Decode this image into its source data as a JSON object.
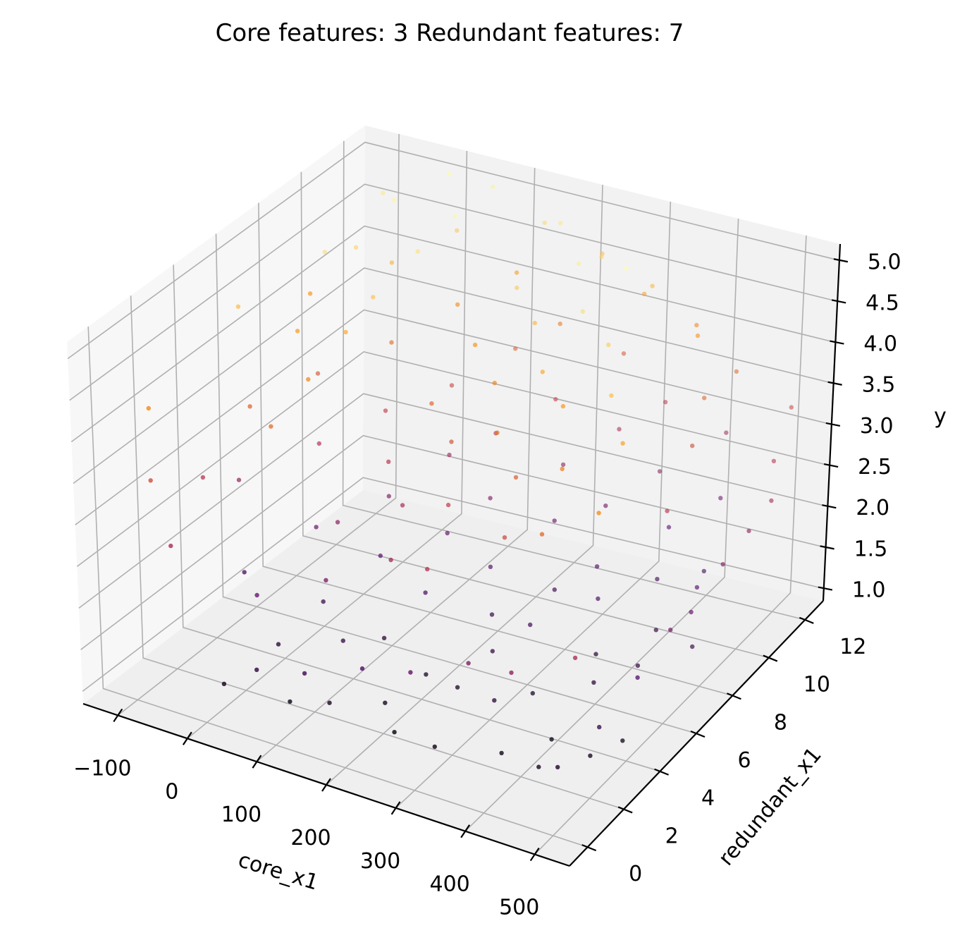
{
  "chart_data": {
    "type": "scatter",
    "projection": "3d",
    "title": "Core features: 3 Redundant features: 7",
    "xlabel": "core_x1",
    "ylabel": "redundant_x1",
    "zlabel": "y",
    "xlim": [
      -150,
      550
    ],
    "ylim": [
      -1,
      13
    ],
    "zlim": [
      0.85,
      5.2
    ],
    "x_ticks": [
      -100,
      0,
      100,
      200,
      300,
      400,
      500
    ],
    "y_ticks": [
      0,
      2,
      4,
      6,
      8,
      10,
      12
    ],
    "z_ticks": [
      1.0,
      1.5,
      2.0,
      2.5,
      3.0,
      3.5,
      4.0,
      4.5,
      5.0
    ],
    "x_tick_labels": [
      "−100",
      "0",
      "100",
      "200",
      "300",
      "400",
      "500"
    ],
    "y_tick_labels": [
      "0",
      "2",
      "4",
      "6",
      "8",
      "10",
      "12"
    ],
    "z_tick_labels": [
      "1.0",
      "1.5",
      "2.0",
      "2.5",
      "3.0",
      "3.5",
      "4.0",
      "4.5",
      "5.0"
    ],
    "grid": true,
    "colormap": "inferno",
    "color_by": "y",
    "pane_colors": {
      "back": "#f2f2f2",
      "side": "#f7f7f7",
      "floor": "#efefef"
    },
    "points": [
      [
        12,
        0.5,
        1.25
      ],
      [
        87,
        1.2,
        1.1
      ],
      [
        156,
        0.8,
        1.35
      ],
      [
        230,
        1.5,
        1.05
      ],
      [
        305,
        0.9,
        1.2
      ],
      [
        380,
        1.7,
        1.15
      ],
      [
        450,
        1.1,
        1.3
      ],
      [
        40,
        2.3,
        1.45
      ],
      [
        120,
        2.8,
        1.6
      ],
      [
        200,
        2.1,
        1.2
      ],
      [
        275,
        3.2,
        1.35
      ],
      [
        345,
        2.6,
        1.5
      ],
      [
        415,
        3.1,
        1.1
      ],
      [
        490,
        2.4,
        1.25
      ],
      [
        -40,
        3.4,
        1.9
      ],
      [
        60,
        3.9,
        1.7
      ],
      [
        140,
        4.2,
        1.4
      ],
      [
        215,
        3.7,
        1.25
      ],
      [
        290,
        4.5,
        1.55
      ],
      [
        360,
        4.1,
        1.3
      ],
      [
        430,
        4.8,
        1.45
      ],
      [
        505,
        3.6,
        1.2
      ],
      [
        -90,
        4.9,
        2.6
      ],
      [
        10,
        5.3,
        2.2
      ],
      [
        95,
        5.6,
        2.0
      ],
      [
        175,
        5.1,
        1.85
      ],
      [
        250,
        5.9,
        1.6
      ],
      [
        320,
        5.4,
        1.75
      ],
      [
        395,
        6.2,
        1.4
      ],
      [
        470,
        5.7,
        1.55
      ],
      [
        -20,
        6.5,
        2.9
      ],
      [
        70,
        6.9,
        2.4
      ],
      [
        150,
        7.1,
        2.1
      ],
      [
        225,
        6.7,
        1.95
      ],
      [
        300,
        7.4,
        1.7
      ],
      [
        375,
        7.0,
        1.85
      ],
      [
        445,
        7.6,
        1.5
      ],
      [
        520,
        6.8,
        1.65
      ],
      [
        -60,
        7.8,
        3.4
      ],
      [
        30,
        8.1,
        3.1
      ],
      [
        115,
        8.4,
        2.7
      ],
      [
        190,
        7.9,
        2.45
      ],
      [
        265,
        8.6,
        2.2
      ],
      [
        340,
        8.2,
        1.9
      ],
      [
        410,
        8.9,
        1.75
      ],
      [
        485,
        8.3,
        1.95
      ],
      [
        -110,
        9.1,
        4.0
      ],
      [
        0,
        9.4,
        3.6
      ],
      [
        80,
        9.7,
        3.2
      ],
      [
        160,
        9.2,
        2.9
      ],
      [
        240,
        9.9,
        2.55
      ],
      [
        315,
        9.5,
        2.3
      ],
      [
        390,
        10.2,
        2.05
      ],
      [
        460,
        9.6,
        1.8
      ],
      [
        -30,
        10.4,
        4.3
      ],
      [
        55,
        10.8,
        3.9
      ],
      [
        135,
        11.0,
        3.5
      ],
      [
        210,
        10.5,
        3.15
      ],
      [
        285,
        11.2,
        2.8
      ],
      [
        355,
        10.9,
        2.5
      ],
      [
        430,
        11.5,
        2.2
      ],
      [
        -80,
        11.6,
        4.8
      ],
      [
        20,
        11.9,
        4.5
      ],
      [
        100,
        12.2,
        4.1
      ],
      [
        180,
        11.7,
        3.75
      ],
      [
        255,
        12.4,
        3.4
      ],
      [
        330,
        12.0,
        3.05
      ],
      [
        405,
        12.6,
        2.7
      ],
      [
        -130,
        2.0,
        3.9
      ],
      [
        -120,
        6.0,
        4.4
      ],
      [
        -100,
        1.0,
        3.3
      ],
      [
        -70,
        8.5,
        4.7
      ],
      [
        -50,
        0.2,
        2.8
      ],
      [
        -10,
        12.5,
        5.0
      ],
      [
        45,
        12.8,
        4.9
      ],
      [
        125,
        12.7,
        4.65
      ],
      [
        205,
        12.9,
        4.4
      ],
      [
        280,
        12.5,
        4.15
      ],
      [
        350,
        12.8,
        3.85
      ],
      [
        425,
        12.3,
        3.55
      ],
      [
        500,
        12.6,
        3.2
      ],
      [
        520,
        11.0,
        2.95
      ],
      [
        540,
        9.0,
        2.6
      ],
      [
        535,
        5.0,
        2.3
      ],
      [
        25,
        1.8,
        2.1
      ],
      [
        105,
        2.5,
        2.35
      ],
      [
        185,
        3.0,
        2.7
      ],
      [
        260,
        2.2,
        2.95
      ],
      [
        335,
        3.5,
        3.25
      ],
      [
        405,
        2.9,
        3.6
      ],
      [
        475,
        3.3,
        3.95
      ],
      [
        65,
        4.5,
        2.55
      ],
      [
        145,
        5.0,
        2.85
      ],
      [
        220,
        4.7,
        3.1
      ],
      [
        295,
        5.5,
        3.45
      ],
      [
        370,
        5.2,
        3.8
      ],
      [
        440,
        5.8,
        4.15
      ],
      [
        90,
        6.2,
        3.0
      ],
      [
        170,
        6.6,
        3.35
      ],
      [
        245,
        6.3,
        3.7
      ],
      [
        320,
        7.0,
        4.05
      ],
      [
        395,
        6.8,
        4.4
      ],
      [
        115,
        7.5,
        3.5
      ],
      [
        195,
        7.9,
        3.85
      ],
      [
        270,
        7.7,
        4.2
      ],
      [
        345,
        8.4,
        4.55
      ],
      [
        140,
        8.8,
        4.0
      ],
      [
        215,
        9.2,
        4.35
      ],
      [
        290,
        9.0,
        4.7
      ],
      [
        165,
        10.0,
        4.5
      ],
      [
        240,
        10.5,
        4.85
      ],
      [
        315,
        10.3,
        5.0
      ],
      [
        -15,
        4.0,
        3.6
      ],
      [
        -5,
        5.5,
        3.9
      ],
      [
        5,
        7.0,
        4.2
      ],
      [
        15,
        8.0,
        4.45
      ],
      [
        35,
        9.5,
        4.75
      ],
      [
        50,
        10.8,
        4.95
      ],
      [
        -85,
        3.0,
        3.0
      ],
      [
        -75,
        5.0,
        3.5
      ],
      [
        -65,
        7.0,
        4.05
      ],
      [
        -55,
        9.5,
        4.6
      ],
      [
        -45,
        11.0,
        4.9
      ],
      [
        480,
        1.0,
        1.4
      ],
      [
        500,
        2.5,
        1.6
      ],
      [
        515,
        4.0,
        1.9
      ],
      [
        525,
        6.5,
        2.15
      ],
      [
        530,
        8.0,
        2.4
      ],
      [
        545,
        10.0,
        2.75
      ],
      [
        460,
        7.5,
        3.0
      ],
      [
        440,
        9.5,
        3.3
      ],
      [
        420,
        10.8,
        3.55
      ],
      [
        380,
        11.8,
        4.0
      ],
      [
        300,
        12.2,
        4.35
      ],
      [
        230,
        12.0,
        4.6
      ],
      [
        160,
        12.3,
        4.8
      ],
      [
        60,
        0.5,
        1.55
      ],
      [
        135,
        0.3,
        1.75
      ],
      [
        210,
        0.6,
        1.95
      ],
      [
        285,
        0.4,
        2.15
      ],
      [
        360,
        0.7,
        2.4
      ],
      [
        435,
        0.2,
        2.6
      ],
      [
        510,
        0.8,
        2.85
      ]
    ]
  }
}
